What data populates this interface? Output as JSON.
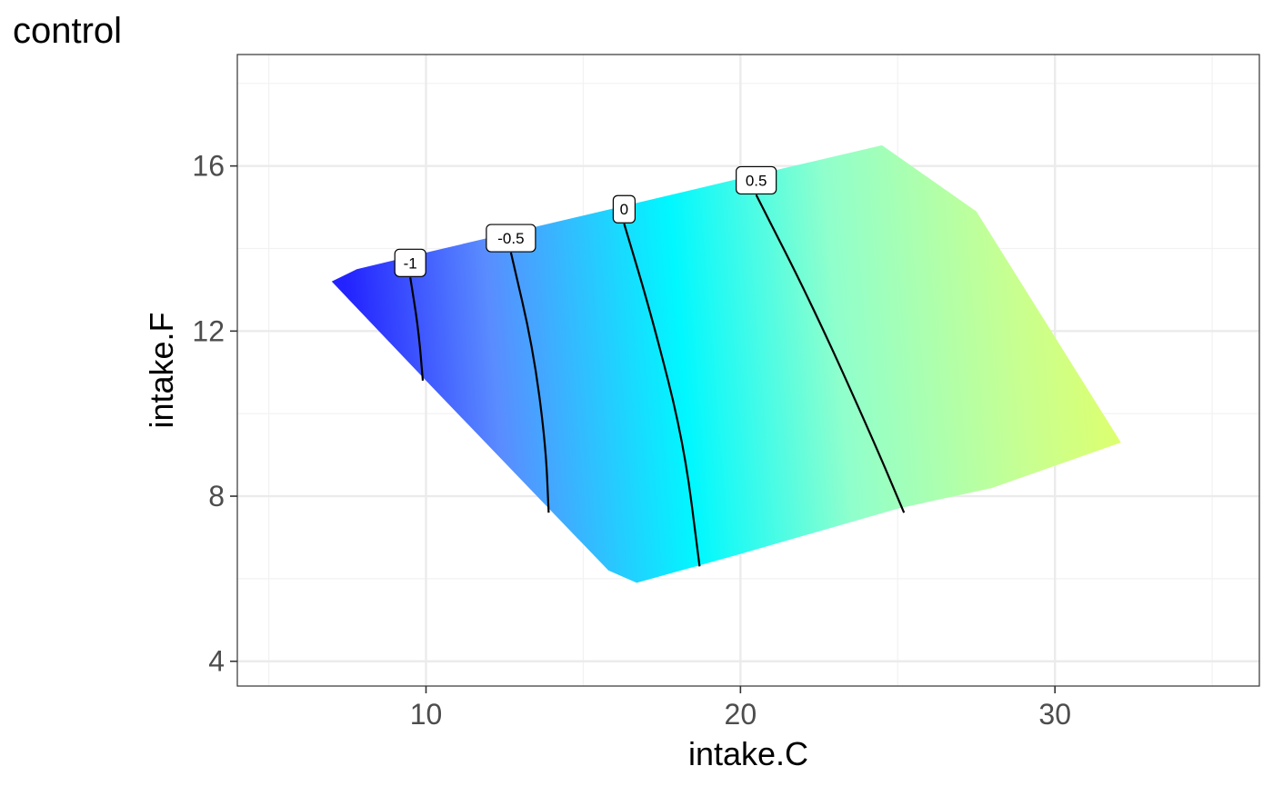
{
  "chart_data": {
    "type": "contour",
    "title": "control",
    "xlabel": "intake.C",
    "ylabel": "intake.F",
    "xlim": [
      4,
      36.5
    ],
    "ylim": [
      3.4,
      18.7
    ],
    "x_ticks": [
      10,
      20,
      30
    ],
    "y_ticks": [
      4,
      8,
      12,
      16
    ],
    "grid": true,
    "fill": {
      "colormap": [
        "#0000ff",
        "#00ffff",
        "#ffff66"
      ],
      "value_range": [
        -1.5,
        0.8
      ],
      "region": [
        [
          7.0,
          13.2
        ],
        [
          7.8,
          13.5
        ],
        [
          10,
          13.9
        ],
        [
          15,
          14.8
        ],
        [
          20,
          15.7
        ],
        [
          24.5,
          16.5
        ],
        [
          27.5,
          14.9
        ],
        [
          32.1,
          9.3
        ],
        [
          28,
          8.2
        ],
        [
          25,
          7.7
        ],
        [
          20,
          6.6
        ],
        [
          16.7,
          5.9
        ],
        [
          15.8,
          6.2
        ],
        [
          10,
          10.8
        ],
        [
          7.0,
          13.2
        ]
      ]
    },
    "contours": [
      {
        "level": -1,
        "label": "-1",
        "points": [
          [
            9.5,
            13.3
          ],
          [
            9.75,
            12.1
          ],
          [
            9.9,
            10.8
          ]
        ]
      },
      {
        "level": -0.5,
        "label": "-0.5",
        "points": [
          [
            12.7,
            13.9
          ],
          [
            13.4,
            11.6
          ],
          [
            13.8,
            9.3
          ],
          [
            13.9,
            7.6
          ]
        ]
      },
      {
        "level": 0,
        "label": "0",
        "points": [
          [
            16.3,
            14.6
          ],
          [
            17.2,
            12.3
          ],
          [
            18.2,
            9.3
          ],
          [
            18.7,
            6.3
          ]
        ]
      },
      {
        "level": 0.5,
        "label": "0.5",
        "points": [
          [
            20.5,
            15.3
          ],
          [
            22.3,
            12.6
          ],
          [
            24.2,
            9.4
          ],
          [
            25.2,
            7.6
          ]
        ]
      }
    ]
  }
}
